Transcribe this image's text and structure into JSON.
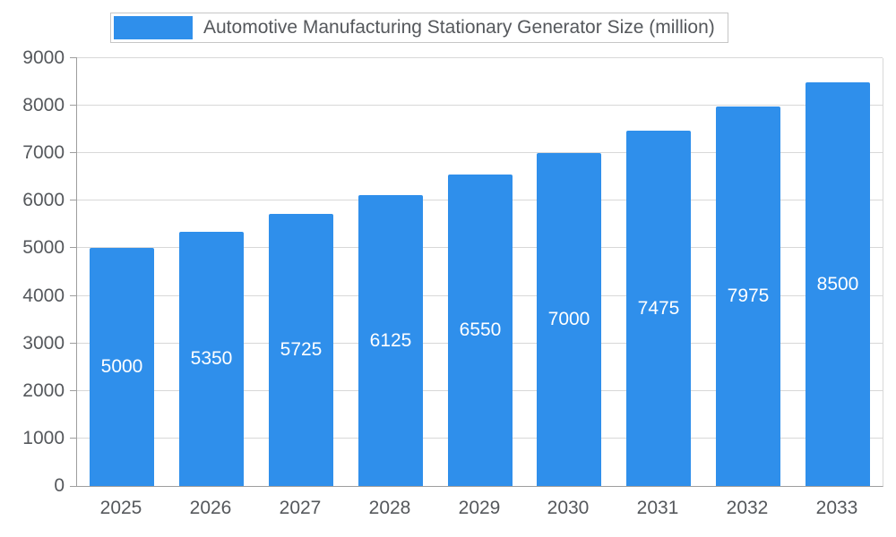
{
  "chart_data": {
    "type": "bar",
    "title": "Automotive Manufacturing Stationary Generator Size (million)",
    "categories": [
      "2025",
      "2026",
      "2027",
      "2028",
      "2029",
      "2030",
      "2031",
      "2032",
      "2033"
    ],
    "values": [
      5000,
      5350,
      5725,
      6125,
      6550,
      7000,
      7475,
      7975,
      8500
    ],
    "ylim": [
      0,
      9000
    ],
    "ytick_step": 1000,
    "grid": true,
    "legend_position": "top-left",
    "bar_color": "#2f8feb",
    "value_label_color": "#ffffff",
    "axis_text_color": "#55585c",
    "grid_color": "#d8d8d8",
    "axis_line_color": "#9e9e9e",
    "background_color": "#ffffff"
  }
}
